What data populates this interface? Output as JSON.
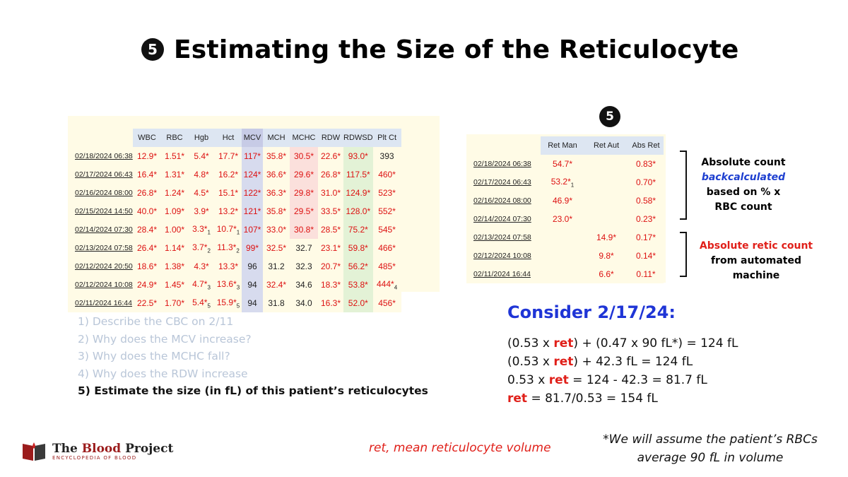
{
  "title": {
    "badge": "5",
    "text": "Estimating the Size of the Reticulocyte"
  },
  "cbc": {
    "headers": [
      "WBC",
      "RBC",
      "Hgb",
      "Hct",
      "MCV",
      "MCH",
      "MCHC",
      "RDW",
      "RDWSD",
      "Plt Ct"
    ],
    "rows": [
      {
        "date": "02/18/2024 06:38",
        "cells": [
          {
            "v": "12.9*",
            "a": true
          },
          {
            "v": "1.51*",
            "a": true
          },
          {
            "v": "5.4*",
            "a": true
          },
          {
            "v": "17.7*",
            "a": true
          },
          {
            "v": "117*",
            "a": true
          },
          {
            "v": "35.8*",
            "a": true
          },
          {
            "v": "30.5*",
            "a": true
          },
          {
            "v": "22.6*",
            "a": true
          },
          {
            "v": "93.0*",
            "a": true
          },
          {
            "v": "393",
            "a": false
          }
        ]
      },
      {
        "date": "02/17/2024 06:43",
        "cells": [
          {
            "v": "16.4*",
            "a": true
          },
          {
            "v": "1.31*",
            "a": true
          },
          {
            "v": "4.8*",
            "a": true
          },
          {
            "v": "16.2*",
            "a": true
          },
          {
            "v": "124*",
            "a": true
          },
          {
            "v": "36.6*",
            "a": true
          },
          {
            "v": "29.6*",
            "a": true
          },
          {
            "v": "26.8*",
            "a": true
          },
          {
            "v": "117.5*",
            "a": true
          },
          {
            "v": "460*",
            "a": true
          }
        ]
      },
      {
        "date": "02/16/2024 08:00",
        "cells": [
          {
            "v": "26.8*",
            "a": true
          },
          {
            "v": "1.24*",
            "a": true
          },
          {
            "v": "4.5*",
            "a": true
          },
          {
            "v": "15.1*",
            "a": true
          },
          {
            "v": "122*",
            "a": true
          },
          {
            "v": "36.3*",
            "a": true
          },
          {
            "v": "29.8*",
            "a": true
          },
          {
            "v": "31.0*",
            "a": true
          },
          {
            "v": "124.9*",
            "a": true
          },
          {
            "v": "523*",
            "a": true
          }
        ]
      },
      {
        "date": "02/15/2024 14:50",
        "cells": [
          {
            "v": "40.0*",
            "a": true
          },
          {
            "v": "1.09*",
            "a": true
          },
          {
            "v": "3.9*",
            "a": true
          },
          {
            "v": "13.2*",
            "a": true
          },
          {
            "v": "121*",
            "a": true
          },
          {
            "v": "35.8*",
            "a": true
          },
          {
            "v": "29.5*",
            "a": true
          },
          {
            "v": "33.5*",
            "a": true
          },
          {
            "v": "128.0*",
            "a": true
          },
          {
            "v": "552*",
            "a": true
          }
        ]
      },
      {
        "date": "02/14/2024 07:30",
        "cells": [
          {
            "v": "28.4*",
            "a": true
          },
          {
            "v": "1.00*",
            "a": true
          },
          {
            "v": "3.3*",
            "a": true,
            "s": "1"
          },
          {
            "v": "10.7*",
            "a": true,
            "s": "1"
          },
          {
            "v": "107*",
            "a": true
          },
          {
            "v": "33.0*",
            "a": true
          },
          {
            "v": "30.8*",
            "a": true
          },
          {
            "v": "28.5*",
            "a": true
          },
          {
            "v": "75.2*",
            "a": true
          },
          {
            "v": "545*",
            "a": true
          }
        ]
      },
      {
        "date": "02/13/2024 07:58",
        "cells": [
          {
            "v": "26.4*",
            "a": true
          },
          {
            "v": "1.14*",
            "a": true
          },
          {
            "v": "3.7*",
            "a": true,
            "s": "2"
          },
          {
            "v": "11.3*",
            "a": true,
            "s": "2"
          },
          {
            "v": "99*",
            "a": true
          },
          {
            "v": "32.5*",
            "a": true
          },
          {
            "v": "32.7",
            "a": false
          },
          {
            "v": "23.1*",
            "a": true
          },
          {
            "v": "59.8*",
            "a": true
          },
          {
            "v": "466*",
            "a": true
          }
        ]
      },
      {
        "date": "02/12/2024 20:50",
        "cells": [
          {
            "v": "18.6*",
            "a": true
          },
          {
            "v": "1.38*",
            "a": true
          },
          {
            "v": "4.3*",
            "a": true
          },
          {
            "v": "13.3*",
            "a": true
          },
          {
            "v": "96",
            "a": false
          },
          {
            "v": "31.2",
            "a": false
          },
          {
            "v": "32.3",
            "a": false
          },
          {
            "v": "20.7*",
            "a": true
          },
          {
            "v": "56.2*",
            "a": true
          },
          {
            "v": "485*",
            "a": true
          }
        ]
      },
      {
        "date": "02/12/2024 10:08",
        "cells": [
          {
            "v": "24.9*",
            "a": true
          },
          {
            "v": "1.45*",
            "a": true
          },
          {
            "v": "4.7*",
            "a": true,
            "s": "3"
          },
          {
            "v": "13.6*",
            "a": true,
            "s": "3"
          },
          {
            "v": "94",
            "a": false
          },
          {
            "v": "32.4*",
            "a": true
          },
          {
            "v": "34.6",
            "a": false
          },
          {
            "v": "18.3*",
            "a": true
          },
          {
            "v": "53.8*",
            "a": true
          },
          {
            "v": "444*",
            "a": true,
            "s": "4"
          }
        ]
      },
      {
        "date": "02/11/2024 16:44",
        "cells": [
          {
            "v": "22.5*",
            "a": true
          },
          {
            "v": "1.70*",
            "a": true
          },
          {
            "v": "5.4*",
            "a": true,
            "s": "5"
          },
          {
            "v": "15.9*",
            "a": true,
            "s": "5"
          },
          {
            "v": "94",
            "a": false
          },
          {
            "v": "31.8",
            "a": false
          },
          {
            "v": "34.0",
            "a": false
          },
          {
            "v": "16.3*",
            "a": true
          },
          {
            "v": "52.0*",
            "a": true
          },
          {
            "v": "456*",
            "a": true
          }
        ]
      }
    ]
  },
  "ret": {
    "badge": "5",
    "headers": [
      "Ret Man",
      "Ret Aut",
      "Abs Ret"
    ],
    "rows": [
      {
        "date": "02/18/2024 06:38",
        "cells": [
          {
            "v": "54.7*"
          },
          {
            "v": ""
          },
          {
            "v": "0.83*"
          }
        ]
      },
      {
        "date": "02/17/2024 06:43",
        "cells": [
          {
            "v": "53.2*",
            "s": "1"
          },
          {
            "v": ""
          },
          {
            "v": "0.70*"
          }
        ]
      },
      {
        "date": "02/16/2024 08:00",
        "cells": [
          {
            "v": "46.9*"
          },
          {
            "v": ""
          },
          {
            "v": "0.58*"
          }
        ]
      },
      {
        "date": "02/14/2024 07:30",
        "cells": [
          {
            "v": "23.0*"
          },
          {
            "v": ""
          },
          {
            "v": "0.23*"
          }
        ]
      },
      {
        "date": "02/13/2024 07:58",
        "cells": [
          {
            "v": ""
          },
          {
            "v": "14.9*"
          },
          {
            "v": "0.17*"
          }
        ]
      },
      {
        "date": "02/12/2024 10:08",
        "cells": [
          {
            "v": ""
          },
          {
            "v": "9.8*"
          },
          {
            "v": "0.14*"
          }
        ]
      },
      {
        "date": "02/11/2024 16:44",
        "cells": [
          {
            "v": ""
          },
          {
            "v": "6.6*"
          },
          {
            "v": "0.11*"
          }
        ]
      }
    ]
  },
  "notes": {
    "absolute": {
      "line1": "Absolute count",
      "line2": "backcalculated",
      "line3": "based on % x",
      "line4": "RBC count"
    },
    "retic": {
      "line1": "Absolute retic count",
      "line2": "from automated",
      "line3": "machine"
    }
  },
  "questions": [
    "1) Describe the CBC on 2/11",
    "2) Why does the MCV increase?",
    "3) Why does the MCHC fall?",
    "4) Why does the RDW increase",
    "5) Estimate the size (in fL) of this patient’s reticulocytes"
  ],
  "consider": {
    "title": "Consider 2/17/24:",
    "ret_word": "ret",
    "eq1a": "(0.53 x ",
    "eq1b": ") + (0.47 x 90 fL*) = 124 fL",
    "eq2a": "(0.53 x ",
    "eq2b": ") + 42.3 fL = 124 fL",
    "eq3a": "0.53 x ",
    "eq3b": " = 124 - 42.3 = 81.7 fL",
    "eq4b": " = 81.7/0.53 = 154 fL"
  },
  "footer": {
    "logo_the": "The ",
    "logo_blood": "Blood",
    "logo_project": " Project",
    "logo_tagline": "ENCYCLOPEDIA OF BLOOD",
    "ret_definition": "ret, mean reticulocyte volume",
    "assume_line1": "*We will assume the patient’s RBCs",
    "assume_line2": "average 90 fL in volume"
  },
  "colors": {
    "abnormal": "#d11111",
    "blue_heading": "#1f35d6",
    "red_accent": "#e0201a",
    "brand": "#9b1c1c"
  },
  "icons": {
    "logo": "book-icon"
  }
}
